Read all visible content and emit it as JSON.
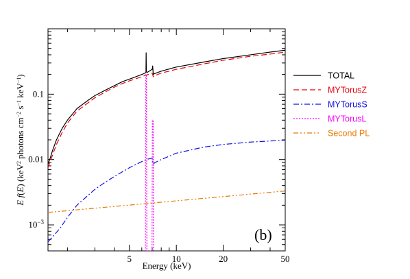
{
  "chart_data": {
    "type": "line",
    "panel_label": "(b)",
    "xlabel": "Energy (keV)",
    "ylabel_parts": [
      "E f(E) (keV",
      "2",
      " photons cm",
      "−2",
      " s",
      "−1",
      " keV",
      "−1",
      ")"
    ],
    "x_scale": "log",
    "y_scale": "log",
    "xlim": [
      1.5,
      50
    ],
    "ylim": [
      0.0004,
      1.0
    ],
    "x_ticks": [
      {
        "value": 5,
        "label": "5"
      },
      {
        "value": 10,
        "label": "10"
      },
      {
        "value": 20,
        "label": "20"
      },
      {
        "value": 50,
        "label": "50"
      }
    ],
    "y_ticks": [
      {
        "value": 0.001,
        "label": "10",
        "sup": "−3"
      },
      {
        "value": 0.01,
        "label": "0.01"
      },
      {
        "value": 0.1,
        "label": "0.1"
      }
    ],
    "grid": false,
    "legend_position": "right",
    "series": [
      {
        "name": "TOTAL",
        "color": "#000000",
        "dash": "",
        "x": [
          1.5,
          1.55,
          1.6,
          1.7,
          1.85,
          2.0,
          2.3,
          2.7,
          3.0,
          3.5,
          4.0,
          4.5,
          5.0,
          5.5,
          6.0,
          6.3,
          6.38,
          6.4,
          6.42,
          6.5,
          6.9,
          7.0,
          7.05,
          7.11,
          7.2,
          8.0,
          10.0,
          15.0,
          20.0,
          30.0,
          40.0,
          50.0
        ],
        "y": [
          0.0085,
          0.0105,
          0.0135,
          0.02,
          0.03,
          0.04,
          0.06,
          0.08,
          0.095,
          0.115,
          0.135,
          0.155,
          0.17,
          0.185,
          0.2,
          0.21,
          0.215,
          0.43,
          0.22,
          0.215,
          0.235,
          0.24,
          0.27,
          0.2,
          0.205,
          0.225,
          0.26,
          0.31,
          0.35,
          0.4,
          0.44,
          0.47
        ]
      },
      {
        "name": "MYTorusZ",
        "color": "#e8000b",
        "dash": "8,4",
        "x": [
          1.5,
          1.6,
          1.7,
          1.85,
          2.0,
          2.3,
          2.7,
          3.0,
          3.5,
          4.0,
          4.5,
          5.0,
          5.5,
          6.0,
          6.4,
          7.0,
          7.11,
          7.2,
          8.0,
          10.0,
          15.0,
          20.0,
          30.0,
          40.0,
          50.0
        ],
        "y": [
          0.0075,
          0.0115,
          0.017,
          0.026,
          0.036,
          0.055,
          0.073,
          0.088,
          0.108,
          0.128,
          0.145,
          0.16,
          0.172,
          0.185,
          0.195,
          0.21,
          0.185,
          0.19,
          0.21,
          0.24,
          0.29,
          0.33,
          0.38,
          0.41,
          0.44
        ]
      },
      {
        "name": "MYTorusS",
        "color": "#1010e0",
        "dash": "8,3,2,3",
        "x": [
          1.5,
          1.6,
          1.8,
          2.0,
          2.3,
          2.7,
          3.0,
          3.5,
          4.0,
          5.0,
          6.0,
          6.4,
          7.0,
          7.11,
          7.3,
          8.0,
          10.0,
          15.0,
          20.0,
          30.0,
          40.0,
          50.0
        ],
        "y": [
          0.00055,
          0.00065,
          0.0009,
          0.0013,
          0.002,
          0.0028,
          0.0035,
          0.0045,
          0.0055,
          0.0075,
          0.0093,
          0.01,
          0.0105,
          0.0085,
          0.009,
          0.01,
          0.0125,
          0.0155,
          0.017,
          0.0185,
          0.0192,
          0.0198
        ]
      },
      {
        "name": "MYTorusL",
        "color": "#ff00ff",
        "dash": "2,2",
        "x": [
          6.3,
          6.33,
          6.37,
          6.4,
          6.43,
          6.47,
          6.5,
          6.9,
          6.98,
          7.02,
          7.06,
          7.1,
          7.14,
          7.18
        ],
        "y": [
          0.0004,
          0.0004,
          0.2,
          0.2,
          0.2,
          0.0004,
          0.0004,
          0.0004,
          0.0004,
          0.04,
          0.04,
          0.04,
          0.0004,
          0.0004
        ]
      },
      {
        "name": "Second PL",
        "color": "#e87800",
        "dash": "7,3,2,3,2,3",
        "x": [
          1.5,
          50.0
        ],
        "y": [
          0.00155,
          0.0033
        ]
      }
    ]
  }
}
